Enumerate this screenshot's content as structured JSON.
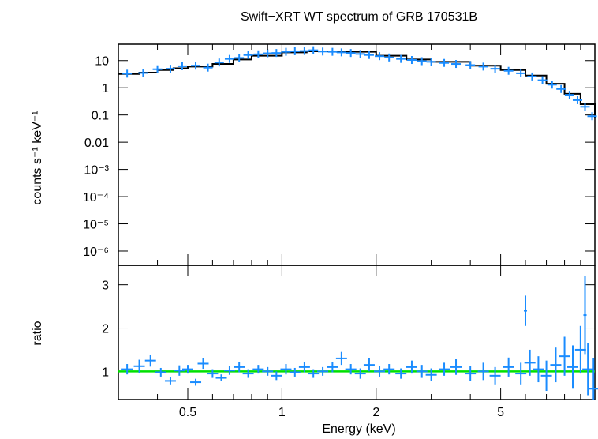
{
  "chart_data": {
    "title": "Swift−XRT WT spectrum of GRB 170531B",
    "xlabel": "Energy (keV)",
    "x_scale": "log",
    "xlim": [
      0.3,
      10
    ],
    "x_ticks": [
      {
        "value": 0.5,
        "label": "0.5"
      },
      {
        "value": 1,
        "label": "1"
      },
      {
        "value": 2,
        "label": "2"
      },
      {
        "value": 5,
        "label": "5"
      }
    ],
    "colors": {
      "data": "#1a8cff",
      "model": "#000000",
      "unity": "#00e000"
    },
    "panels": [
      {
        "id": "spectrum",
        "type": "scatter",
        "ylabel": "counts s⁻¹ keV⁻¹",
        "y_scale": "log",
        "ylim": [
          3e-07,
          40
        ],
        "y_ticks": [
          {
            "value": 10,
            "label": "10"
          },
          {
            "value": 1,
            "label": "1"
          },
          {
            "value": 0.1,
            "label": "0.1"
          },
          {
            "value": 0.01,
            "label": "0.01"
          },
          {
            "value": 0.001,
            "label": "10⁻³"
          },
          {
            "value": 0.0001,
            "label": "10⁻⁴"
          },
          {
            "value": 1e-05,
            "label": "10⁻⁵"
          },
          {
            "value": 1e-06,
            "label": "10⁻⁶"
          }
        ],
        "model": {
          "x": [
            0.3,
            0.35,
            0.4,
            0.45,
            0.5,
            0.6,
            0.7,
            0.8,
            1.0,
            1.2,
            1.5,
            2.0,
            2.5,
            3.0,
            4.0,
            5.0,
            6.0,
            7.0,
            8.0,
            9.0,
            10.0
          ],
          "y": [
            3.2,
            3.6,
            4.5,
            5.2,
            6.0,
            7.5,
            11,
            15,
            20,
            22,
            21,
            15,
            11,
            9,
            6.5,
            4.5,
            2.8,
            1.4,
            0.6,
            0.25,
            0.08
          ]
        },
        "points": {
          "x": [
            0.32,
            0.36,
            0.4,
            0.44,
            0.48,
            0.53,
            0.58,
            0.63,
            0.68,
            0.73,
            0.78,
            0.84,
            0.9,
            0.96,
            1.03,
            1.1,
            1.18,
            1.26,
            1.35,
            1.45,
            1.55,
            1.66,
            1.78,
            1.9,
            2.05,
            2.2,
            2.4,
            2.6,
            2.8,
            3.0,
            3.3,
            3.6,
            4.0,
            4.4,
            4.8,
            5.3,
            5.8,
            6.3,
            6.8,
            7.3,
            7.8,
            8.3,
            8.8,
            9.3,
            9.8
          ],
          "y": [
            3.3,
            3.5,
            4.8,
            5.0,
            6.2,
            6.5,
            5.5,
            8.5,
            11.5,
            12.5,
            16,
            17,
            18.5,
            19,
            21,
            22,
            22.5,
            24,
            21.5,
            21,
            20,
            19,
            17.5,
            16,
            14.5,
            13,
            11.5,
            10.5,
            9.5,
            9,
            8.2,
            7.5,
            6.8,
            6.0,
            5.0,
            4.2,
            3.4,
            2.6,
            1.9,
            1.3,
            0.9,
            0.55,
            0.35,
            0.2,
            0.09
          ]
        }
      },
      {
        "id": "ratio",
        "type": "scatter",
        "ylabel": "ratio",
        "y_scale": "linear",
        "ylim": [
          0.35,
          3.45
        ],
        "y_ticks": [
          {
            "value": 1,
            "label": "1"
          },
          {
            "value": 2,
            "label": "2"
          },
          {
            "value": 3,
            "label": "3"
          }
        ],
        "unity_line": 1,
        "points": {
          "x": [
            0.32,
            0.35,
            0.38,
            0.41,
            0.44,
            0.47,
            0.5,
            0.53,
            0.56,
            0.6,
            0.64,
            0.68,
            0.73,
            0.78,
            0.84,
            0.9,
            0.96,
            1.03,
            1.1,
            1.18,
            1.26,
            1.35,
            1.45,
            1.55,
            1.66,
            1.78,
            1.9,
            2.05,
            2.2,
            2.4,
            2.6,
            2.8,
            3.0,
            3.3,
            3.6,
            4.0,
            4.4,
            4.8,
            5.3,
            5.8,
            6.2,
            6.6,
            7.0,
            7.5,
            8.0,
            8.5,
            9.0,
            9.5,
            9.9
          ],
          "y": [
            1.05,
            1.12,
            1.25,
            0.98,
            0.78,
            1.02,
            1.05,
            0.75,
            1.18,
            0.95,
            0.85,
            1.02,
            1.1,
            0.95,
            1.05,
            1.0,
            0.9,
            1.05,
            0.98,
            1.1,
            0.95,
            1.0,
            1.1,
            1.3,
            1.05,
            0.95,
            1.15,
            1.0,
            1.05,
            0.95,
            1.1,
            1.0,
            0.92,
            1.05,
            1.1,
            0.95,
            1.0,
            0.9,
            1.1,
            0.95,
            1.2,
            1.05,
            0.9,
            1.15,
            1.35,
            1.1,
            1.5,
            1.05,
            0.6
          ],
          "errors": [
            0.12,
            0.15,
            0.14,
            0.1,
            0.08,
            0.12,
            0.1,
            0.08,
            0.12,
            0.1,
            0.08,
            0.1,
            0.12,
            0.1,
            0.1,
            0.1,
            0.1,
            0.12,
            0.1,
            0.12,
            0.1,
            0.1,
            0.12,
            0.15,
            0.12,
            0.12,
            0.15,
            0.12,
            0.12,
            0.12,
            0.15,
            0.15,
            0.15,
            0.15,
            0.18,
            0.18,
            0.2,
            0.2,
            0.22,
            0.25,
            0.3,
            0.3,
            0.35,
            0.4,
            0.45,
            0.5,
            0.55,
            0.6,
            0.7
          ]
        },
        "annotations": [
          {
            "x": 6.0,
            "y": 2.4,
            "error": 0.35
          },
          {
            "x": 9.3,
            "y": 2.3,
            "error": 0.9
          }
        ]
      }
    ]
  }
}
